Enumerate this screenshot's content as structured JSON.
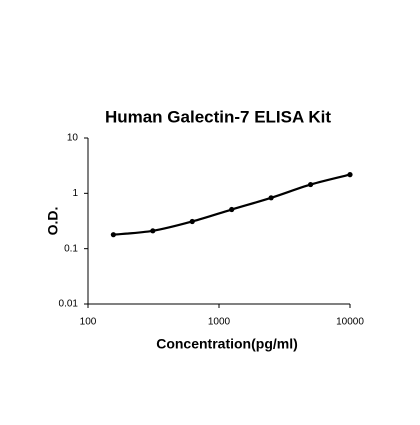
{
  "chart_data": {
    "type": "scatter",
    "title": "Human Galectin-7 ELISA Kit",
    "x_label": "Concentration(pg/ml)",
    "y_label": "O.D.",
    "x": [
      156.25,
      312.5,
      625,
      1250,
      2500,
      5000,
      10000
    ],
    "values": [
      0.179,
      0.21,
      0.31,
      0.51,
      0.83,
      1.44,
      2.18
    ],
    "color": "#000000",
    "xscale": "log",
    "yscale": "log",
    "fit_line": true,
    "xlim": [
      100,
      10000
    ],
    "ylim": [
      0.01,
      10
    ],
    "xticks": [
      100,
      1000,
      10000
    ],
    "yticks": [
      0.01,
      0.1,
      1,
      10
    ]
  }
}
